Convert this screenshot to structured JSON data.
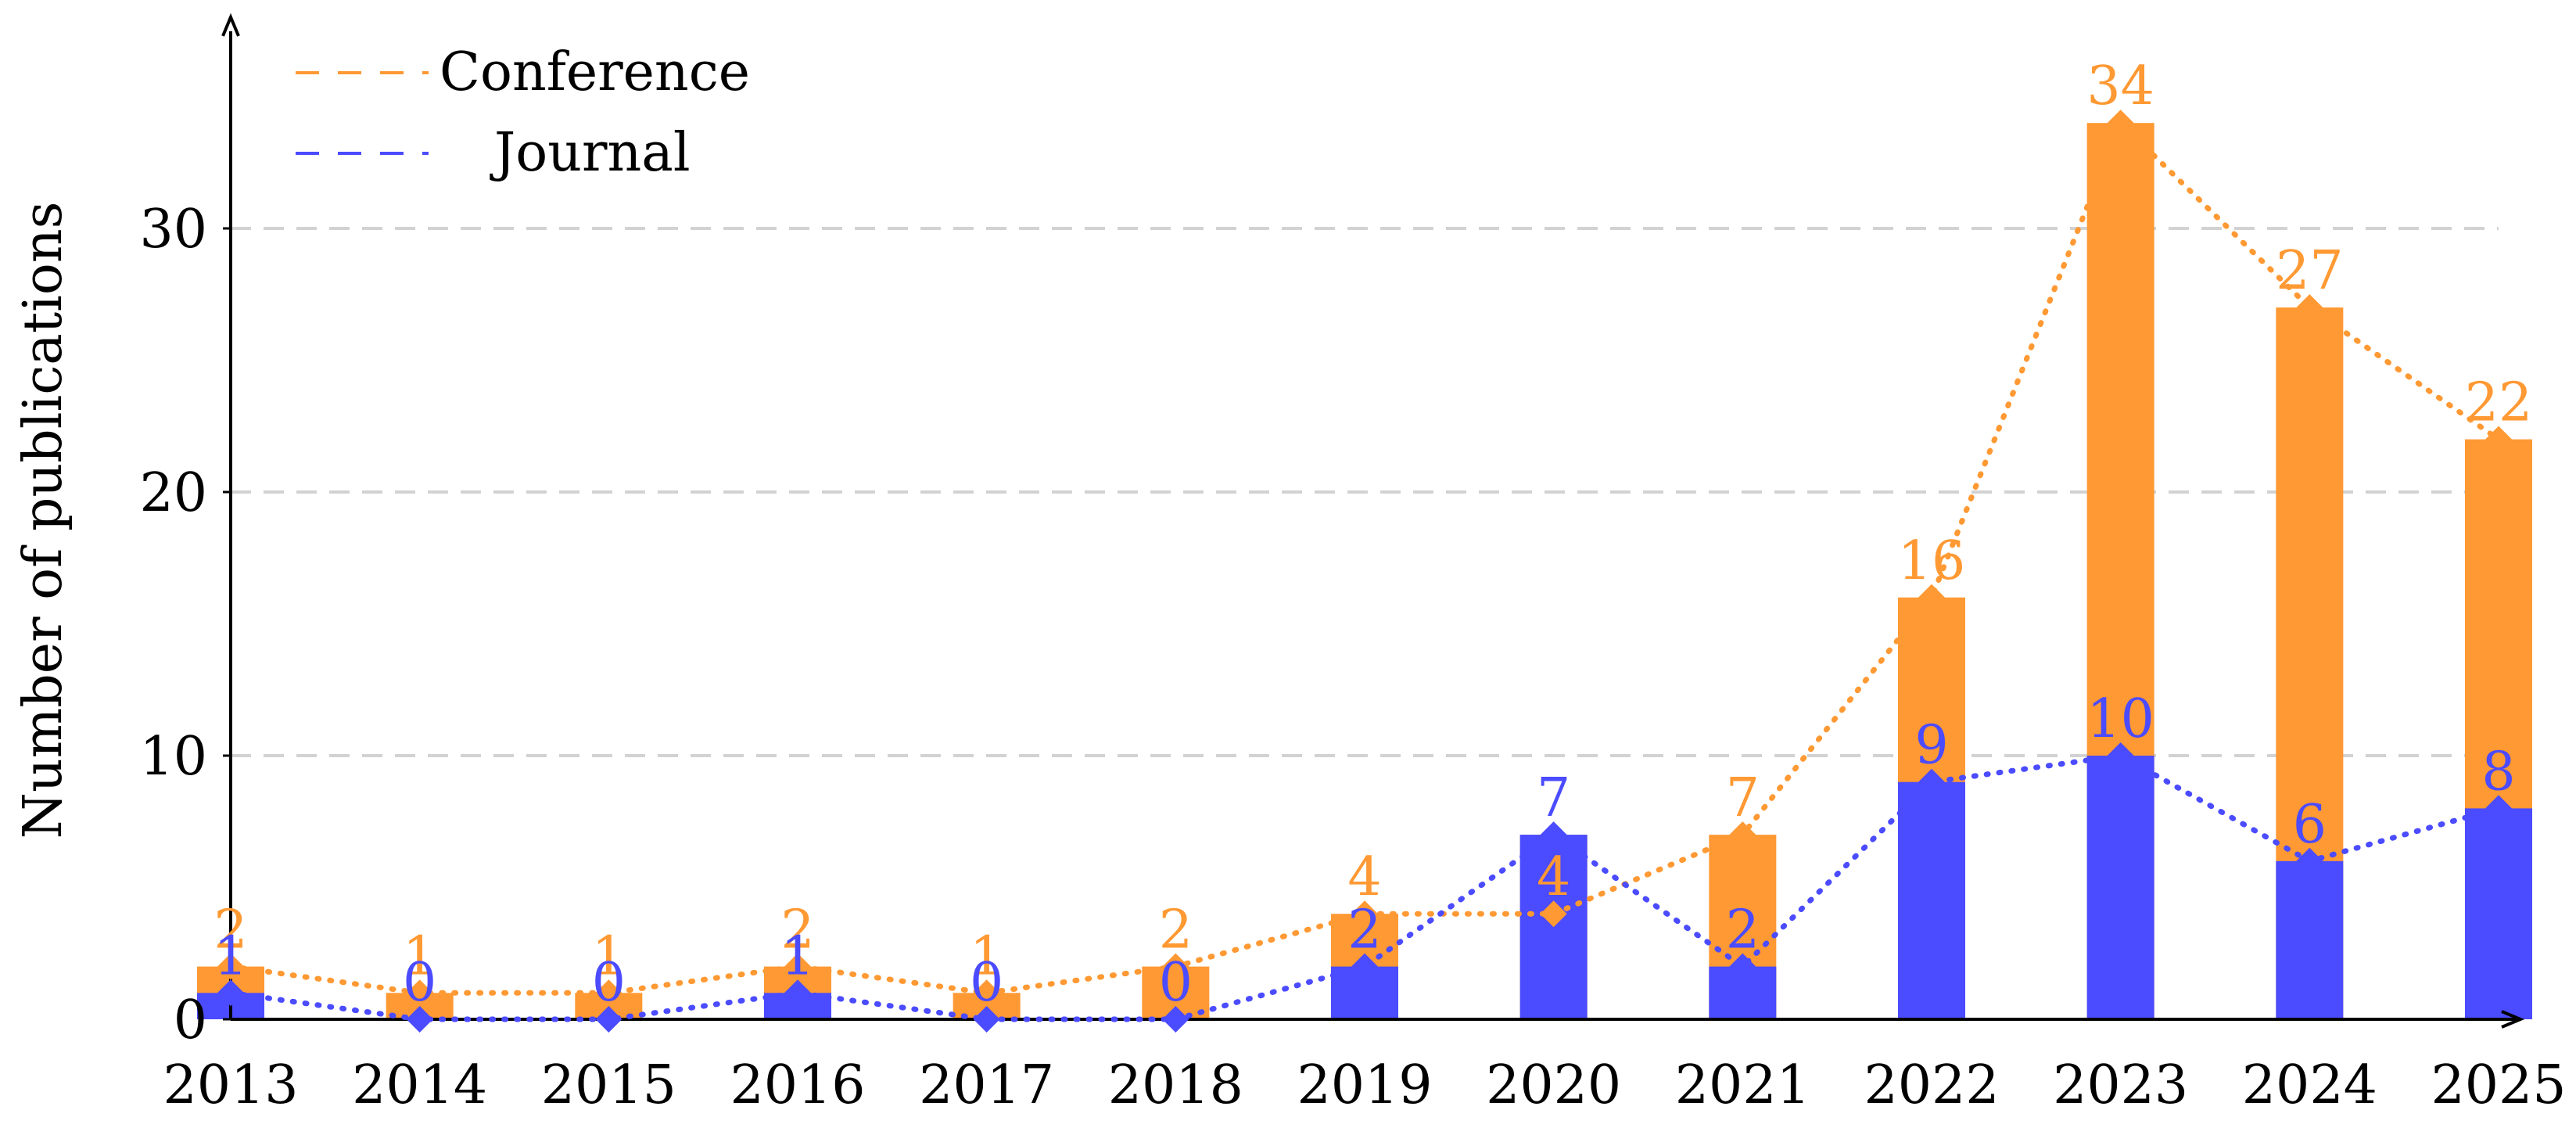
{
  "chart_data": {
    "type": "bar",
    "title": "",
    "xlabel": "",
    "ylabel": "Number of publications",
    "ylim": [
      0,
      37
    ],
    "yticks": [
      0,
      10,
      20,
      30
    ],
    "grid": "horizontal dashed",
    "legend": "top-left",
    "categories": [
      "2013",
      "2014",
      "2015",
      "2016",
      "2017",
      "2018",
      "2019",
      "2020",
      "2021",
      "2022",
      "2023",
      "2024",
      "2025"
    ],
    "series": [
      {
        "name": "Conference",
        "color": "#FF9933",
        "values": [
          2,
          1,
          1,
          2,
          1,
          2,
          4,
          4,
          7,
          16,
          34,
          27,
          22
        ]
      },
      {
        "name": "Journal",
        "color": "#4B4BFF",
        "values": [
          1,
          0,
          0,
          1,
          0,
          0,
          2,
          7,
          2,
          9,
          10,
          6,
          8
        ]
      }
    ]
  }
}
